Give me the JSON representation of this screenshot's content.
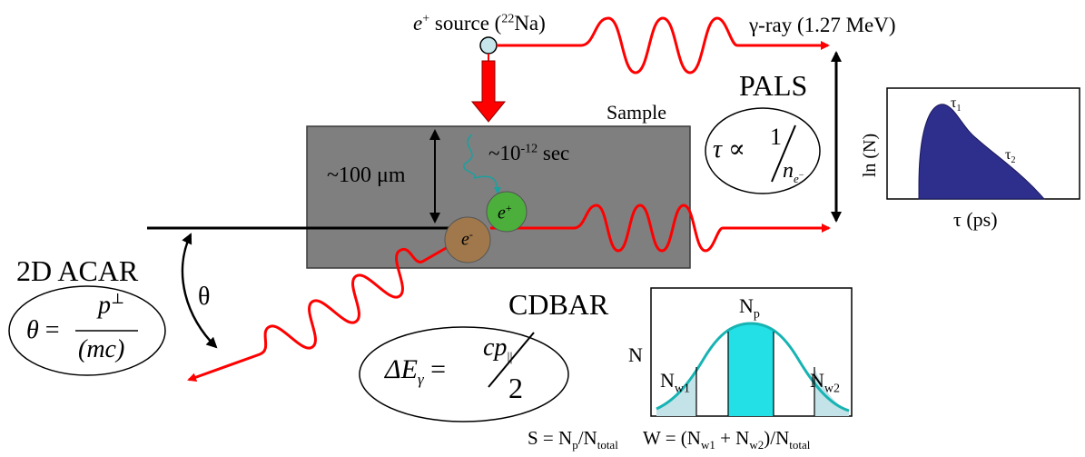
{
  "source": {
    "prefix": "e",
    "sup_plus": "+",
    "mid": " source (",
    "iso": "22",
    "elem": "Na",
    "close": ")"
  },
  "gamma": "γ-ray (1.27 MeV)",
  "sample_label": "Sample",
  "depth": "~100 μm",
  "time": {
    "base": "~10",
    "exp": "-12",
    "unit": " sec"
  },
  "electron": {
    "e": "e",
    "sup": "-"
  },
  "positron": {
    "e": "e",
    "sup": "+"
  },
  "techniques": {
    "pals": "PALS",
    "acar": "2D ACAR",
    "cdbar": "CDBAR"
  },
  "theta": "θ",
  "formulas": {
    "pals": {
      "tau": "τ",
      "prop": "∝",
      "one": "1",
      "n": "n",
      "sub": "e",
      "subsup": "−"
    },
    "acar": {
      "theta": "θ",
      "eq": "=",
      "p": "p",
      "sup": "⊥",
      "den": "(mc)"
    },
    "cdbar": {
      "delta": "ΔE",
      "sub": "γ",
      "eq": "=",
      "cp": "cp",
      "par": "||",
      "two": "2"
    }
  },
  "lifetime_plot": {
    "ylabel": "ln (N)",
    "xlabel": "τ (ps)",
    "tau1": "τ",
    "tau1_sub": "1",
    "tau2": "τ",
    "tau2_sub": "2"
  },
  "doppler_plot": {
    "ylabel": "N",
    "np": "N",
    "np_sub": "p",
    "nw1": "N",
    "nw1_sub": "w1",
    "nw2": "N",
    "nw2_sub": "w2",
    "s_formula": {
      "a": "S = N",
      "a_sub": "p",
      "b": "/N",
      "b_sub": "total"
    },
    "w_formula": {
      "a": "W = (N",
      "a_sub": "w1",
      "b": " + N",
      "b_sub": "w2",
      "c": ")/N",
      "c_sub": "total"
    }
  },
  "colors": {
    "sample": "#7f7f7f",
    "gamma": "#ff0000",
    "electron": "#a0784b",
    "positron": "#4caf3c",
    "lifetime_fill": "#2e2e8c",
    "gauss": "#17b3b3",
    "peak": "#22e0e6",
    "wing": "#c3e3e8",
    "source": "#c6e6ec"
  }
}
